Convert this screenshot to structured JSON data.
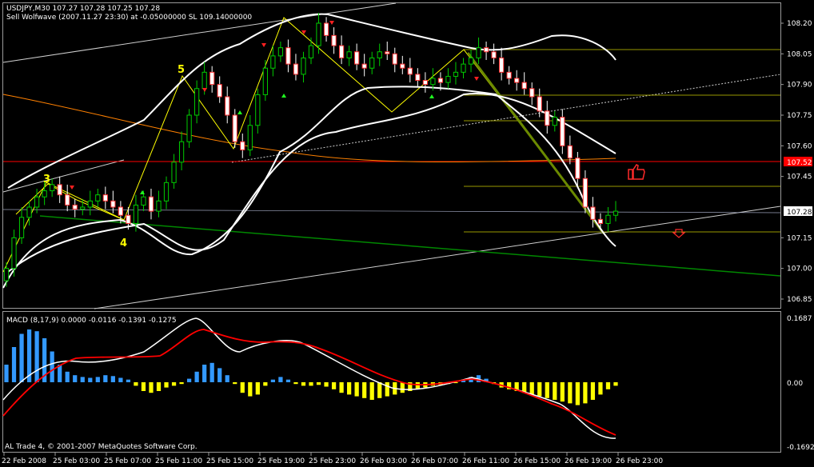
{
  "header": {
    "symbol_line": "USDJPY,M30  107.27 107.28 107.25 107.28",
    "signal_line": "Sell Wolfwave (2007.11.27 23:30) at -0.05000000 SL 109.14000000"
  },
  "macd": {
    "label": "MACD  (8,17,9) 0.0000 -0.0116 -0.1391 -0.1275",
    "axis": [
      "0.1687",
      "0.00",
      "-0.1692"
    ]
  },
  "footer": {
    "copyright": "AL Trade 4, © 2001-2007 MetaQuotes Software Corp."
  },
  "price_badges": {
    "current": "107.28",
    "level": "107.52"
  },
  "wave_labels": [
    "3",
    "4",
    "5"
  ],
  "colors": {
    "background": "#000000",
    "bull_candle": "#00cc00",
    "bear_candle": "#ffffff",
    "bollinger": "#ffffff",
    "wolfwave": "#ffff00",
    "trend_green": "#008800",
    "ma_orange": "#ff8000",
    "level_red": "#ff0000",
    "macd_main": "#ffffff",
    "macd_signal": "#ff0000",
    "hist_pos": "#3399ff",
    "hist_neg": "#ffff00"
  },
  "chart_data": {
    "type": "candlestick",
    "title": "USDJPY,M30",
    "price_axis": {
      "ticks": [
        "108.20",
        "108.05",
        "107.90",
        "107.75",
        "107.60",
        "107.45",
        "107.28",
        "107.15",
        "107.00",
        "106.85"
      ],
      "ylim": [
        106.82,
        108.25
      ]
    },
    "time_axis": {
      "ticks": [
        "22 Feb 2008",
        "25 Feb 03:00",
        "25 Feb 07:00",
        "25 Feb 11:00",
        "25 Feb 15:00",
        "25 Feb 19:00",
        "25 Feb 23:00",
        "26 Feb 03:00",
        "26 Feb 07:00",
        "26 Feb 11:00",
        "26 Feb 15:00",
        "26 Feb 19:00",
        "26 Feb 23:00"
      ]
    },
    "closes": [
      107.0,
      107.15,
      107.25,
      107.3,
      107.35,
      107.38,
      107.41,
      107.36,
      107.31,
      107.29,
      107.3,
      107.33,
      107.36,
      107.33,
      107.3,
      107.26,
      107.22,
      107.31,
      107.35,
      107.28,
      107.33,
      107.42,
      107.52,
      107.62,
      107.75,
      107.88,
      107.96,
      107.9,
      107.84,
      107.75,
      107.62,
      107.58,
      107.7,
      107.85,
      107.98,
      108.04,
      108.08,
      108.0,
      107.95,
      108.03,
      108.09,
      108.2,
      108.14,
      108.09,
      108.03,
      108.06,
      108.0,
      107.98,
      108.03,
      108.06,
      108.05,
      108.0,
      107.98,
      107.95,
      107.92,
      107.9,
      107.93,
      107.91,
      107.94,
      107.96,
      108.0,
      108.03,
      108.08,
      108.06,
      108.03,
      107.96,
      107.93,
      107.91,
      107.88,
      107.84,
      107.77,
      107.7,
      107.74,
      107.6,
      107.54,
      107.44,
      107.3,
      107.24,
      107.22,
      107.26,
      107.28
    ],
    "macd": {
      "main": 0.0,
      "signal": -0.0116,
      "ylim": [
        -0.1692,
        0.1687
      ]
    }
  }
}
